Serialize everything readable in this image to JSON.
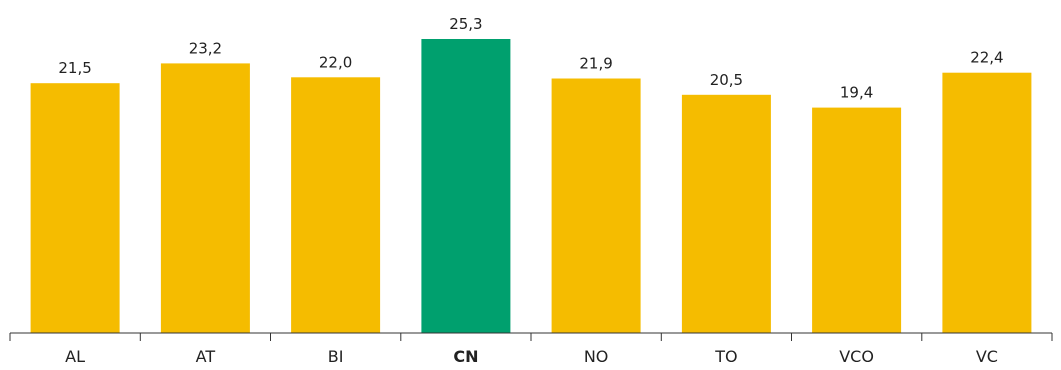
{
  "chart_data": {
    "type": "bar",
    "categories": [
      "AL",
      "AT",
      "BI",
      "CN",
      "NO",
      "TO",
      "VCO",
      "VC"
    ],
    "values": [
      21.5,
      23.2,
      22.0,
      25.3,
      21.9,
      20.5,
      19.4,
      22.4
    ],
    "value_labels": [
      "21,5",
      "23,2",
      "22,0",
      "25,3",
      "21,9",
      "20,5",
      "19,4",
      "22,4"
    ],
    "highlight_category": "CN",
    "ylim": [
      0,
      25.3
    ],
    "grid": false,
    "legend": "none",
    "colors": {
      "bar": "#F5BC00",
      "highlight": "#00A06E"
    }
  }
}
